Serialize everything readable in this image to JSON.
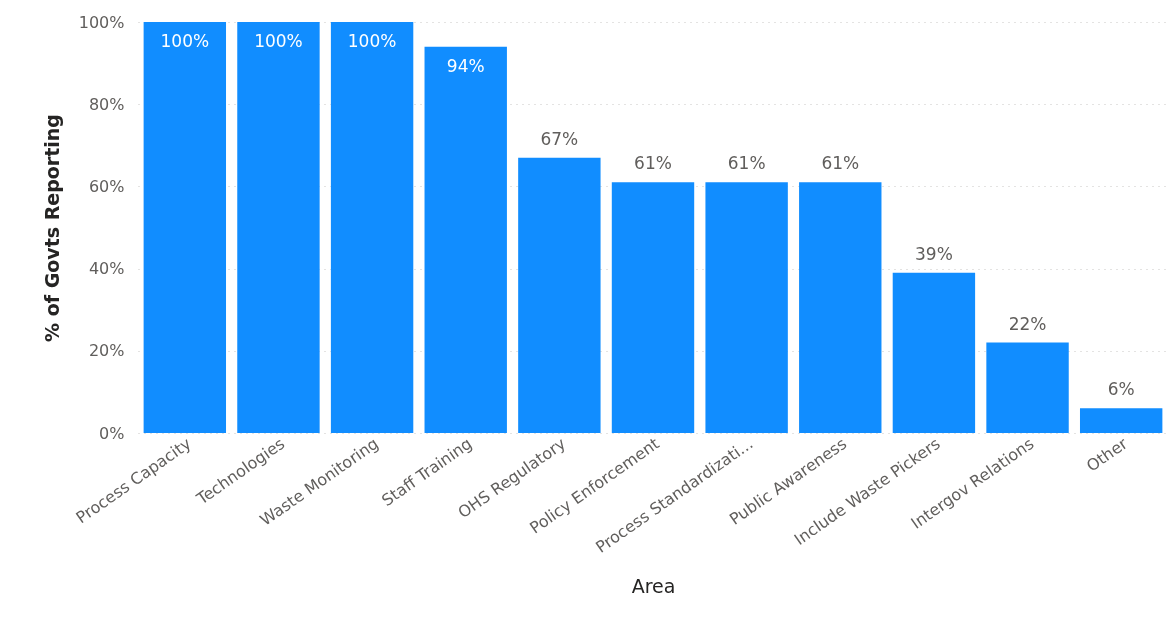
{
  "chart_data": {
    "type": "bar",
    "xlabel": "Area",
    "ylabel": "% of Govts Reporting",
    "categories": [
      "Process Capacity",
      "Technologies",
      "Waste Monitoring",
      "Staff Training",
      "OHS Regulatory",
      "Policy Enforcement",
      "Process Standardizati...",
      "Public Awareness",
      "Include Waste Pickers",
      "Intergov Relations",
      "Other"
    ],
    "values": [
      100,
      100,
      100,
      94,
      67,
      61,
      61,
      61,
      39,
      22,
      6
    ],
    "value_labels": [
      "100%",
      "100%",
      "100%",
      "94%",
      "67%",
      "61%",
      "61%",
      "61%",
      "39%",
      "22%",
      "6%"
    ],
    "color": "#118dff",
    "ylim": [
      0,
      100
    ],
    "yticks": [
      {
        "value": 0,
        "label": "0%"
      },
      {
        "value": 20,
        "label": "20%"
      },
      {
        "value": 40,
        "label": "40%"
      },
      {
        "value": 60,
        "label": "60%"
      },
      {
        "value": 80,
        "label": "80%"
      },
      {
        "value": 100,
        "label": "100%"
      }
    ],
    "grid": "y"
  }
}
